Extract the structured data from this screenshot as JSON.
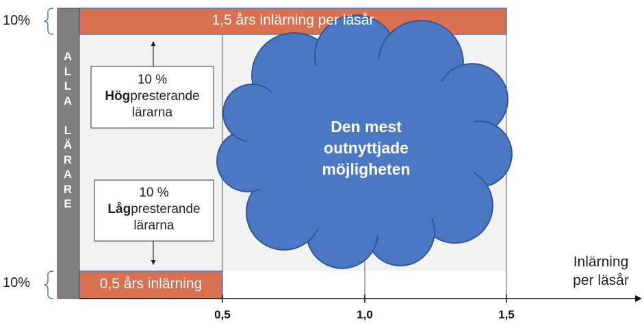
{
  "top_band": {
    "percent": "10%",
    "label": "1,5 års inlärning per läsår"
  },
  "bottom_band": {
    "percent": "10%",
    "label": "0,5 års inlärning"
  },
  "side_bar": {
    "letters": [
      "A",
      "L",
      "L",
      "A",
      "",
      "L",
      "Ä",
      "R",
      "A",
      "R",
      "E"
    ]
  },
  "high_box": {
    "percent": "10 %",
    "bold": "Hög",
    "rest": "presterande",
    "line3": "lärarna"
  },
  "low_box": {
    "percent": "10 %",
    "bold": "Låg",
    "rest": "presterande",
    "line3": "lärarna"
  },
  "cloud": {
    "line1": "Den mest",
    "line2": "outnyttjade",
    "line3": "möjligheten"
  },
  "axis": {
    "ticks": [
      "0,5",
      "1,0",
      "1,5"
    ],
    "title_line1": "Inlärning",
    "title_line2": "per läsår"
  },
  "colors": {
    "band": "#d9704f",
    "band_border": "#4a7fc1",
    "side_bar": "#7f7f7f",
    "cloud_fill": "#4a78c2",
    "cloud_stroke": "#2e528f",
    "background_panel": "#f2f2f2"
  }
}
